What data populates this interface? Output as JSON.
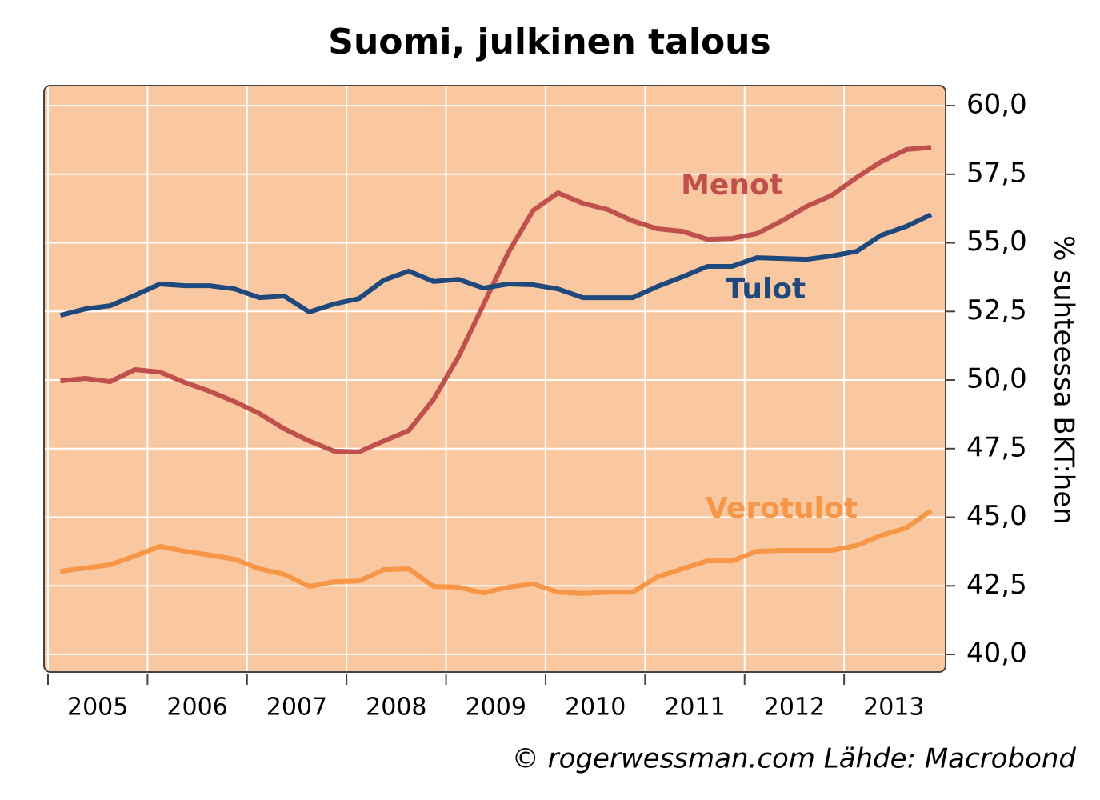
{
  "chart_data": {
    "type": "line",
    "title": "Suomi, julkinen talous",
    "y_axis_label": "% suhteessa BKT:hen",
    "source": "© rogerwessman.com Lähde: Macrobond",
    "x": [
      2005.125,
      2005.375,
      2005.625,
      2005.875,
      2006.125,
      2006.375,
      2006.625,
      2006.875,
      2007.125,
      2007.375,
      2007.625,
      2007.875,
      2008.125,
      2008.375,
      2008.625,
      2008.875,
      2009.125,
      2009.375,
      2009.625,
      2009.875,
      2010.125,
      2010.375,
      2010.625,
      2010.875,
      2011.125,
      2011.375,
      2011.625,
      2011.875,
      2012.125,
      2012.375,
      2012.625,
      2012.875,
      2013.125,
      2013.375,
      2013.625,
      2013.875
    ],
    "series": [
      {
        "name": "Menot",
        "color": "#c0504d",
        "values": [
          49.97,
          50.06,
          49.94,
          50.38,
          50.29,
          49.91,
          49.59,
          49.21,
          48.78,
          48.22,
          47.78,
          47.41,
          47.38,
          47.78,
          48.16,
          49.3,
          50.85,
          52.74,
          54.64,
          56.18,
          56.82,
          56.44,
          56.21,
          55.8,
          55.51,
          55.42,
          55.13,
          55.16,
          55.34,
          55.8,
          56.33,
          56.73,
          57.38,
          57.96,
          58.4,
          58.48
        ]
      },
      {
        "name": "Tulot",
        "color": "#1f497d",
        "values": [
          52.36,
          52.59,
          52.71,
          53.09,
          53.5,
          53.44,
          53.44,
          53.32,
          53.0,
          53.06,
          52.48,
          52.77,
          52.97,
          53.64,
          53.97,
          53.59,
          53.67,
          53.35,
          53.5,
          53.47,
          53.32,
          53.0,
          53.0,
          53.0,
          53.41,
          53.76,
          54.14,
          54.14,
          54.46,
          54.43,
          54.4,
          54.52,
          54.69,
          55.28,
          55.6,
          56.03
        ]
      },
      {
        "name": "Verotulot",
        "color": "#f79646",
        "values": [
          43.03,
          43.15,
          43.27,
          43.59,
          43.94,
          43.76,
          43.62,
          43.47,
          43.12,
          42.92,
          42.48,
          42.65,
          42.68,
          43.09,
          43.12,
          42.48,
          42.45,
          42.24,
          42.45,
          42.57,
          42.27,
          42.22,
          42.27,
          42.27,
          42.83,
          43.12,
          43.41,
          43.41,
          43.76,
          43.79,
          43.79,
          43.79,
          43.97,
          44.34,
          44.61,
          45.25
        ]
      }
    ],
    "xlim": [
      2005,
      2014.02
    ],
    "xticks": [
      2005,
      2006,
      2007,
      2008,
      2009,
      2010,
      2011,
      2012,
      2013
    ],
    "ylim": [
      39.36,
      60.73
    ],
    "yticks": [
      {
        "value": 40,
        "label": "40,0"
      },
      {
        "value": 42.5,
        "label": "42,5"
      },
      {
        "value": 45,
        "label": "45,0"
      },
      {
        "value": 47.5,
        "label": "47,5"
      },
      {
        "value": 50,
        "label": "50,0"
      },
      {
        "value": 52.5,
        "label": "52,5"
      },
      {
        "value": 55,
        "label": "55,0"
      },
      {
        "value": 57.5,
        "label": "57,5"
      },
      {
        "value": 60,
        "label": "60,0"
      }
    ],
    "grid": true,
    "background": "#fac8a0"
  }
}
